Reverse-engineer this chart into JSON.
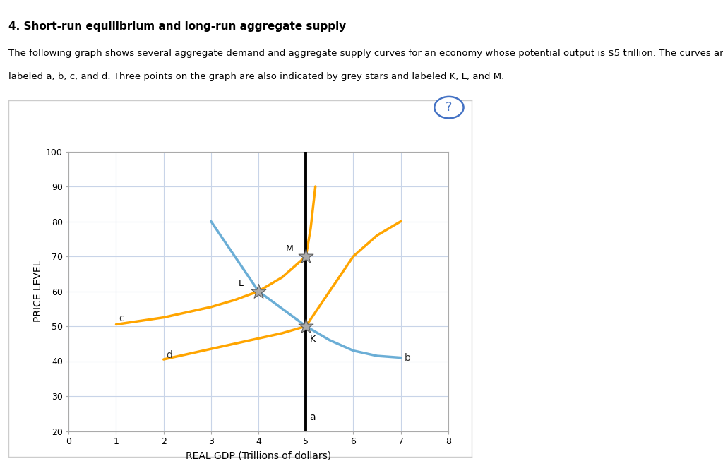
{
  "title": "4. Short-run equilibrium and long-run aggregate supply",
  "paragraph1": "The following graph shows several aggregate demand and aggregate supply curves for an economy whose potential output is $5 trillion. The curves are",
  "paragraph2": "labeled a, b, c, and d. Three points on the graph are also indicated by grey stars and labeled K, L, and M.",
  "xlabel": "REAL GDP (Trillions of dollars)",
  "ylabel": "PRICE LEVEL",
  "xlim": [
    0,
    8
  ],
  "ylim": [
    20,
    100
  ],
  "xticks": [
    0,
    1,
    2,
    3,
    4,
    5,
    6,
    7,
    8
  ],
  "yticks": [
    20,
    30,
    40,
    50,
    60,
    70,
    80,
    90,
    100
  ],
  "lras_x": 5,
  "lras_label": "a",
  "blue_curve_x": [
    3.0,
    3.5,
    4.0,
    4.5,
    5.0,
    5.5,
    6.0,
    6.5,
    7.0
  ],
  "blue_curve_y": [
    80,
    70,
    60,
    55,
    50,
    46,
    43,
    41.5,
    41
  ],
  "blue_color": "#6BAED6",
  "blue_label": "b",
  "orange_sras1_x": [
    1.0,
    2.0,
    3.0,
    3.5,
    4.0,
    4.5,
    5.0,
    5.1,
    5.2
  ],
  "orange_sras1_y": [
    50.5,
    52.5,
    55.5,
    57.5,
    60,
    64,
    70,
    78,
    90
  ],
  "orange_sras1_label": "c",
  "orange_sras2_x": [
    2.0,
    2.5,
    3.0,
    3.5,
    4.0,
    4.5,
    5.0,
    5.3,
    5.7,
    6.0,
    6.5,
    7.0
  ],
  "orange_sras2_y": [
    40.5,
    42.0,
    43.5,
    45.0,
    46.5,
    48.0,
    50,
    56,
    64,
    70,
    76,
    80
  ],
  "orange_sras2_label": "d",
  "orange_color": "#FFA500",
  "point_K": [
    5.0,
    50
  ],
  "point_L": [
    4.0,
    60
  ],
  "point_M": [
    5.0,
    70
  ],
  "star_color": "#aaaaaa",
  "star_size": 250,
  "bg_color": "#ffffff",
  "grid_color": "#c8d4e8",
  "question_circle_color": "#4472C4",
  "fig_bg": "#ffffff",
  "page_bg": "#f0f0f0",
  "divider_color": "#C8A040",
  "text_color": "#333333"
}
